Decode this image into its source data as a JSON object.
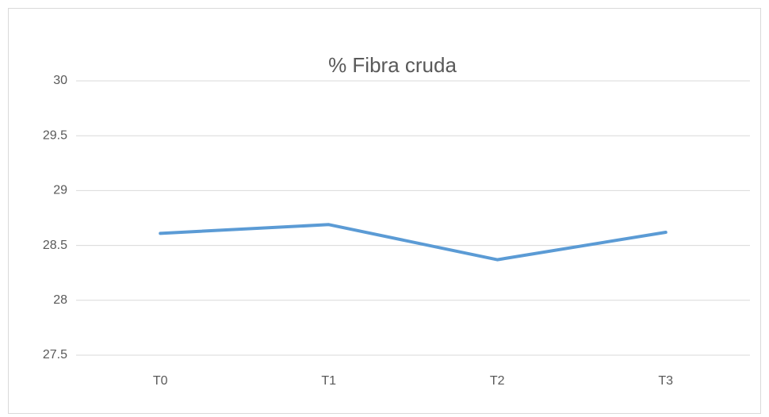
{
  "chart_data": {
    "type": "line",
    "title": "% Fibra cruda",
    "categories": [
      "T0",
      "T1",
      "T2",
      "T3"
    ],
    "values": [
      28.61,
      28.69,
      28.37,
      28.62
    ],
    "color": "#5b9bd5",
    "ylim": [
      27.5,
      30
    ],
    "yticks": [
      27.5,
      28,
      28.5,
      29,
      29.5,
      30
    ],
    "grid": true
  }
}
